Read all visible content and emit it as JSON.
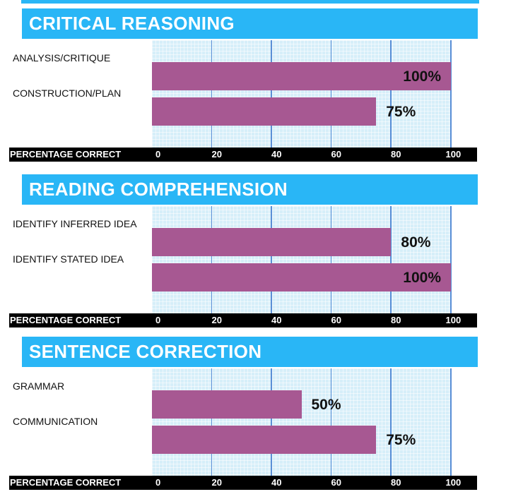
{
  "axis_title": "PERCENTAGE CORRECT",
  "chart_data": [
    {
      "type": "bar",
      "orientation": "horizontal",
      "title": "CRITICAL REASONING",
      "categories": [
        "ANALYSIS/CRITIQUE",
        "CONSTRUCTION/PLAN"
      ],
      "values": [
        100,
        75
      ],
      "value_labels": [
        "100%",
        "75%"
      ],
      "xlabel": "PERCENTAGE CORRECT",
      "xlim": [
        0,
        100
      ],
      "xticks": [
        "0",
        "20",
        "40",
        "60",
        "80",
        "100"
      ],
      "bar_color": "#a75892",
      "grid": true
    },
    {
      "type": "bar",
      "orientation": "horizontal",
      "title": "READING COMPREHENSION",
      "categories": [
        "IDENTIFY INFERRED IDEA",
        "IDENTIFY STATED IDEA"
      ],
      "values": [
        80,
        100
      ],
      "value_labels": [
        "80%",
        "100%"
      ],
      "xlabel": "PERCENTAGE CORRECT",
      "xlim": [
        0,
        100
      ],
      "xticks": [
        "0",
        "20",
        "40",
        "60",
        "80",
        "100"
      ],
      "bar_color": "#a75892",
      "grid": true
    },
    {
      "type": "bar",
      "orientation": "horizontal",
      "title": "SENTENCE CORRECTION",
      "categories": [
        "GRAMMAR",
        "COMMUNICATION"
      ],
      "values": [
        50,
        75
      ],
      "value_labels": [
        "50%",
        "75%"
      ],
      "xlabel": "PERCENTAGE CORRECT",
      "xlim": [
        0,
        100
      ],
      "xticks": [
        "0",
        "20",
        "40",
        "60",
        "80",
        "100"
      ],
      "bar_color": "#a75892",
      "grid": true
    }
  ]
}
